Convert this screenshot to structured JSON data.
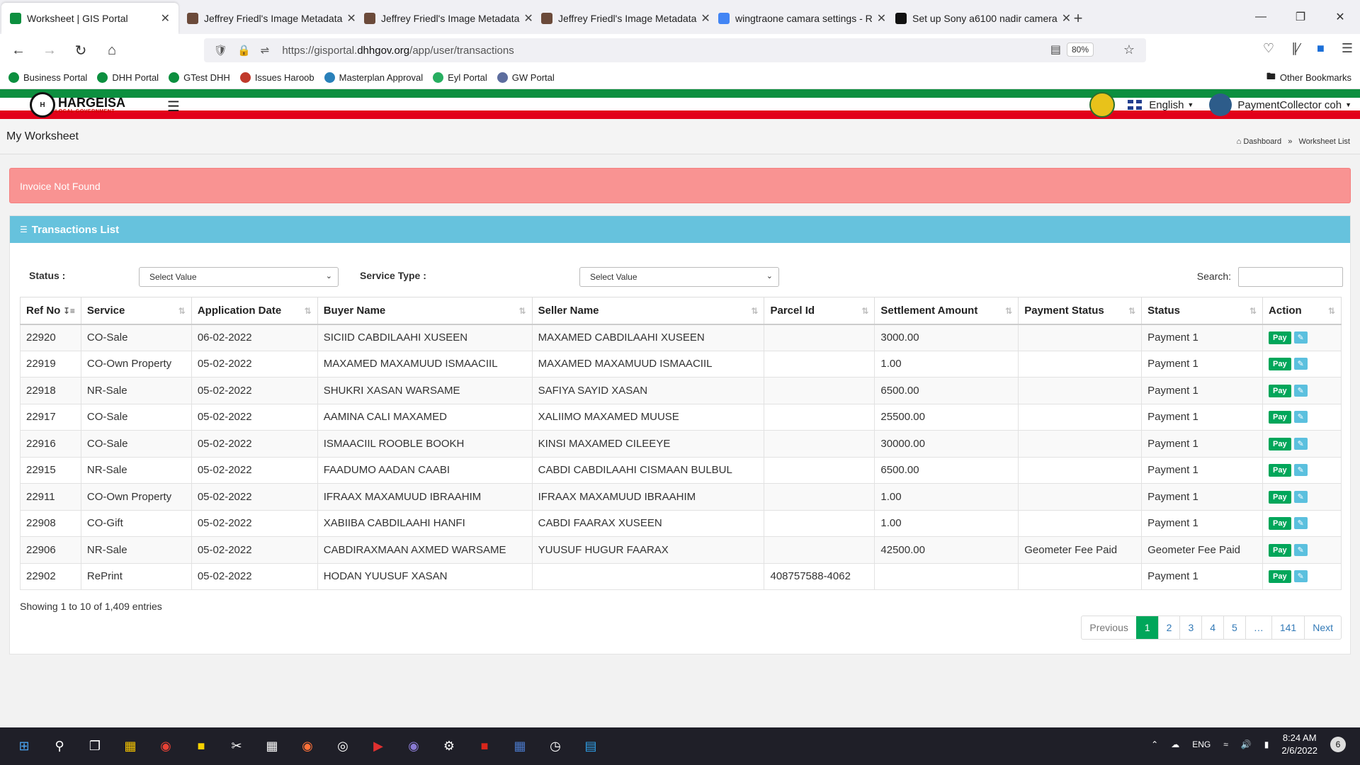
{
  "browser": {
    "tabs": [
      {
        "title": "Worksheet | GIS Portal",
        "active": true,
        "favicon_color": "#0c8f3f"
      },
      {
        "title": "Jeffrey Friedl's Image Metadata",
        "active": false,
        "favicon_color": "#6b4a3a"
      },
      {
        "title": "Jeffrey Friedl's Image Metadata",
        "active": false,
        "favicon_color": "#6b4a3a"
      },
      {
        "title": "Jeffrey Friedl's Image Metadata",
        "active": false,
        "favicon_color": "#6b4a3a"
      },
      {
        "title": "wingtraone camara settings - R",
        "active": false,
        "favicon_color": "#4285f4"
      },
      {
        "title": "Set up Sony a6100 nadir camera",
        "active": false,
        "favicon_color": "#111111"
      }
    ],
    "new_tab": "+",
    "url_prefix": "https://gisportal.",
    "url_host": "dhhgov.org",
    "url_path": "/app/user/transactions",
    "zoom": "80%",
    "bookmarks": [
      {
        "label": "Business Portal",
        "color": "#0c8f3f"
      },
      {
        "label": "DHH  Portal",
        "color": "#0c8f3f"
      },
      {
        "label": "GTest DHH",
        "color": "#0c8f3f"
      },
      {
        "label": "Issues Haroob",
        "color": "#c0392b"
      },
      {
        "label": "Masterplan Approval",
        "color": "#2980b9"
      },
      {
        "label": "Eyl Portal",
        "color": "#27ae60"
      },
      {
        "label": "GW Portal",
        "color": "#5d6d9e"
      }
    ],
    "other_bookmarks": "Other Bookmarks"
  },
  "app": {
    "logo_name": "HARGEISA",
    "logo_sub": "LOCAL GOVERNMENT",
    "language": "English",
    "user": "PaymentCollector coh"
  },
  "page": {
    "title": "My Worksheet",
    "breadcrumb": [
      "Dashboard",
      "Worksheet List"
    ],
    "alert": "Invoice Not Found",
    "panel_title": "Transactions List"
  },
  "filters": {
    "status_label": "Status :",
    "status_value": "Select Value",
    "service_type_label": "Service Type :",
    "service_type_value": "Select Value",
    "search_label": "Search:"
  },
  "table": {
    "columns": [
      "Ref No",
      "Service",
      "Application Date",
      "Buyer Name",
      "Seller Name",
      "Parcel Id",
      "Settlement Amount",
      "Payment Status",
      "Status",
      "Action"
    ],
    "rows": [
      [
        "22920",
        "CO-Sale",
        "06-02-2022",
        "SICIID CABDILAAHI XUSEEN",
        "MAXAMED CABDILAAHI XUSEEN",
        "",
        "3000.00",
        "",
        "Payment 1"
      ],
      [
        "22919",
        "CO-Own Property",
        "05-02-2022",
        "MAXAMED MAXAMUUD ISMAACIIL",
        "MAXAMED MAXAMUUD ISMAACIIL",
        "",
        "1.00",
        "",
        "Payment 1"
      ],
      [
        "22918",
        "NR-Sale",
        "05-02-2022",
        "SHUKRI XASAN WARSAME",
        "SAFIYA SAYID XASAN",
        "",
        "6500.00",
        "",
        "Payment 1"
      ],
      [
        "22917",
        "CO-Sale",
        "05-02-2022",
        "AAMINA CALI MAXAMED",
        "XALIIMO MAXAMED MUUSE",
        "",
        "25500.00",
        "",
        "Payment 1"
      ],
      [
        "22916",
        "CO-Sale",
        "05-02-2022",
        "ISMAACIIL ROOBLE BOOKH",
        "KINSI MAXAMED CILEEYE",
        "",
        "30000.00",
        "",
        "Payment 1"
      ],
      [
        "22915",
        "NR-Sale",
        "05-02-2022",
        "FAADUMO AADAN CAABI",
        "CABDI CABDILAAHI CISMAAN BULBUL",
        "",
        "6500.00",
        "",
        "Payment 1"
      ],
      [
        "22911",
        "CO-Own Property",
        "05-02-2022",
        "IFRAAX MAXAMUUD IBRAAHIM",
        "IFRAAX MAXAMUUD IBRAAHIM",
        "",
        "1.00",
        "",
        "Payment 1"
      ],
      [
        "22908",
        "CO-Gift",
        "05-02-2022",
        "XABIIBA CABDILAAHI HANFI",
        "CABDI FAARAX XUSEEN",
        "",
        "1.00",
        "",
        "Payment 1"
      ],
      [
        "22906",
        "NR-Sale",
        "05-02-2022",
        "CABDIRAXMAAN AXMED WARSAME",
        "YUUSUF HUGUR FAARAX",
        "",
        "42500.00",
        "Geometer Fee Paid",
        "Geometer Fee Paid"
      ],
      [
        "22902",
        "RePrint",
        "05-02-2022",
        "HODAN YUUSUF XASAN",
        "",
        "408757588-4062",
        "",
        "",
        "Payment 1"
      ]
    ],
    "pay_label": "Pay",
    "info": "Showing 1 to 10 of 1,409 entries",
    "pagination": [
      "Previous",
      "1",
      "2",
      "3",
      "4",
      "5",
      "…",
      "141",
      "Next"
    ]
  },
  "taskbar": {
    "language": "ENG",
    "time": "8:24 AM",
    "date": "2/6/2022",
    "notifications": "6"
  },
  "colors": {
    "alert_bg": "#f99392",
    "panel_head": "#66c2dd",
    "pay_button": "#00a65a",
    "edit_button": "#5bc0de",
    "flag_green": "#0c8f3f",
    "flag_red": "#e2001a"
  }
}
